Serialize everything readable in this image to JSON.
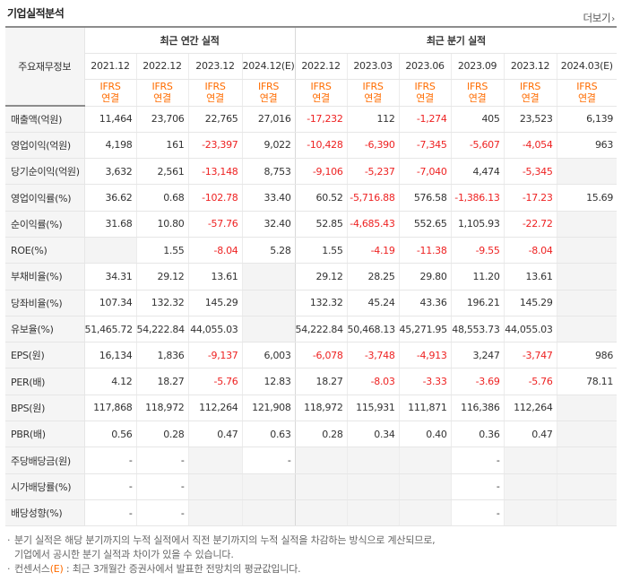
{
  "header": {
    "title": "기업실적분석",
    "more_label": "더보기",
    "more_arrow": "›"
  },
  "table": {
    "row_header_label": "주요재무정보",
    "annual_label": "최근 연간 실적",
    "quarter_label": "최근 분기 실적",
    "periods": [
      "2021.12",
      "2022.12",
      "2023.12",
      "2024.12(E)",
      "2022.12",
      "2023.03",
      "2023.06",
      "2023.09",
      "2023.12",
      "2024.03(E)"
    ],
    "ifrs_line1": "IFRS",
    "ifrs_line2": "연결",
    "rows": [
      {
        "label": "매출액(억원)",
        "values": [
          "11,464",
          "23,706",
          "22,765",
          "27,016",
          "-17,232",
          "112",
          "-1,274",
          "405",
          "23,523",
          "6,139"
        ]
      },
      {
        "label": "영업이익(억원)",
        "values": [
          "4,198",
          "161",
          "-23,397",
          "9,022",
          "-10,428",
          "-6,390",
          "-7,345",
          "-5,607",
          "-4,054",
          "963"
        ]
      },
      {
        "label": "당기순이익(억원)",
        "values": [
          "3,632",
          "2,561",
          "-13,148",
          "8,753",
          "-9,106",
          "-5,237",
          "-7,040",
          "4,474",
          "-5,345",
          ""
        ]
      },
      {
        "label": "영업이익률(%)",
        "values": [
          "36.62",
          "0.68",
          "-102.78",
          "33.40",
          "60.52",
          "-5,716.88",
          "576.58",
          "-1,386.13",
          "-17.23",
          "15.69"
        ]
      },
      {
        "label": "순이익률(%)",
        "values": [
          "31.68",
          "10.80",
          "-57.76",
          "32.40",
          "52.85",
          "-4,685.43",
          "552.65",
          "1,105.93",
          "-22.72",
          ""
        ]
      },
      {
        "label": "ROE(%)",
        "values": [
          "",
          "1.55",
          "-8.04",
          "5.28",
          "1.55",
          "-4.19",
          "-11.38",
          "-9.55",
          "-8.04",
          ""
        ]
      },
      {
        "label": "부채비율(%)",
        "values": [
          "34.31",
          "29.12",
          "13.61",
          "",
          "29.12",
          "28.25",
          "29.80",
          "11.20",
          "13.61",
          ""
        ]
      },
      {
        "label": "당좌비율(%)",
        "values": [
          "107.34",
          "132.32",
          "145.29",
          "",
          "132.32",
          "45.24",
          "43.36",
          "196.21",
          "145.29",
          ""
        ]
      },
      {
        "label": "유보율(%)",
        "values": [
          "51,465.72",
          "54,222.84",
          "44,055.03",
          "",
          "54,222.84",
          "50,468.13",
          "45,271.95",
          "48,553.73",
          "44,055.03",
          ""
        ]
      },
      {
        "label": "EPS(원)",
        "values": [
          "16,134",
          "1,836",
          "-9,137",
          "6,003",
          "-6,078",
          "-3,748",
          "-4,913",
          "3,247",
          "-3,747",
          "986"
        ]
      },
      {
        "label": "PER(배)",
        "values": [
          "4.12",
          "18.27",
          "-5.76",
          "12.83",
          "18.27",
          "-8.03",
          "-3.33",
          "-3.69",
          "-5.76",
          "78.11"
        ]
      },
      {
        "label": "BPS(원)",
        "values": [
          "117,868",
          "118,972",
          "112,264",
          "121,908",
          "118,972",
          "115,931",
          "111,871",
          "116,386",
          "112,264",
          ""
        ]
      },
      {
        "label": "PBR(배)",
        "values": [
          "0.56",
          "0.28",
          "0.47",
          "0.63",
          "0.28",
          "0.34",
          "0.40",
          "0.36",
          "0.47",
          ""
        ]
      },
      {
        "label": "주당배당금(원)",
        "values": [
          "-",
          "-",
          "",
          "-",
          "",
          "",
          "",
          "-",
          "",
          ""
        ]
      },
      {
        "label": "시가배당률(%)",
        "values": [
          "-",
          "-",
          "",
          "",
          "",
          "",
          "",
          "-",
          "",
          ""
        ]
      },
      {
        "label": "배당성향(%)",
        "values": [
          "-",
          "-",
          "",
          "",
          "",
          "",
          "",
          "-",
          "",
          ""
        ]
      }
    ]
  },
  "notes": {
    "line1": "분기 실적은 해당 분기까지의 누적 실적에서 직전 분기까지의 누적 실적을 차감하는 방식으로 계산되므로,",
    "line2": "기업에서 공시한 분기 실적과 차이가 있을 수 있습니다.",
    "line3a": "컨센서스",
    "line3b": "(E)",
    "line3c": " : 최근 3개월간 증권사에서 발표한 전망치의 평균값입니다."
  },
  "colors": {
    "accent": "#ff6c00",
    "negative": "#ee2222",
    "row_header_bg": "#f5f5f5",
    "empty_cell_bg": "#f4f4f4"
  }
}
